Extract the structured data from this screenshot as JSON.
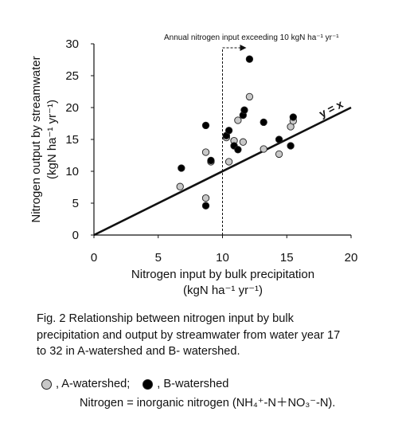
{
  "chart_data": {
    "type": "scatter",
    "xlabel_line1": "Nitrogen input by bulk precipitation",
    "xlabel_line2": "(kgN ha⁻¹ yr⁻¹)",
    "ylabel_line1": "Nitrogen output by streamwater",
    "ylabel_line2": "(kgN ha⁻¹ yr⁻¹)",
    "xlim": [
      0,
      20
    ],
    "ylim": [
      0,
      30
    ],
    "x_ticks": [
      0,
      5,
      10,
      15,
      20
    ],
    "y_ticks": [
      0,
      5,
      10,
      15,
      20,
      25,
      30
    ],
    "grid": false,
    "annotation": "Annual nitrogen input exceeding  10 kgN ha⁻¹ yr⁻¹",
    "threshold_x": 10,
    "reference_line_label": "y = x",
    "reference_line": {
      "x": [
        0,
        20
      ],
      "y": [
        0,
        20
      ]
    },
    "series": [
      {
        "name": "A-watershed",
        "color": "#c8c8c8",
        "points": [
          [
            6.7,
            7.6
          ],
          [
            8.7,
            13.0
          ],
          [
            8.7,
            5.8
          ],
          [
            9.1,
            11.5
          ],
          [
            10.3,
            15.3
          ],
          [
            10.5,
            11.5
          ],
          [
            10.9,
            14.8
          ],
          [
            11.2,
            18.0
          ],
          [
            11.6,
            14.6
          ],
          [
            12.1,
            21.7
          ],
          [
            13.2,
            13.5
          ],
          [
            14.4,
            12.7
          ],
          [
            15.3,
            17.0
          ],
          [
            15.5,
            17.9
          ]
        ]
      },
      {
        "name": "B-watershed",
        "color": "#000000",
        "points": [
          [
            6.8,
            10.5
          ],
          [
            8.7,
            17.2
          ],
          [
            8.7,
            4.6
          ],
          [
            9.1,
            11.7
          ],
          [
            10.3,
            15.6
          ],
          [
            10.5,
            16.4
          ],
          [
            10.9,
            14.0
          ],
          [
            11.2,
            13.4
          ],
          [
            11.6,
            18.8
          ],
          [
            11.7,
            19.6
          ],
          [
            12.1,
            27.6
          ],
          [
            13.2,
            17.7
          ],
          [
            14.4,
            15.0
          ],
          [
            15.3,
            14.0
          ],
          [
            15.5,
            18.5
          ]
        ]
      }
    ]
  },
  "caption": {
    "line1": "Fig. 2   Relationship between nitrogen input by bulk",
    "line2": "precipitation and output by streamwater from water year 17",
    "line3": "to 32 in A-watershed and B- watershed."
  },
  "legend": {
    "a_label": ", A-watershed;",
    "b_label": ", B-watershed"
  },
  "note": "Nitrogen = inorganic nitrogen (NH₄⁺-N＋NO₃⁻-N)."
}
